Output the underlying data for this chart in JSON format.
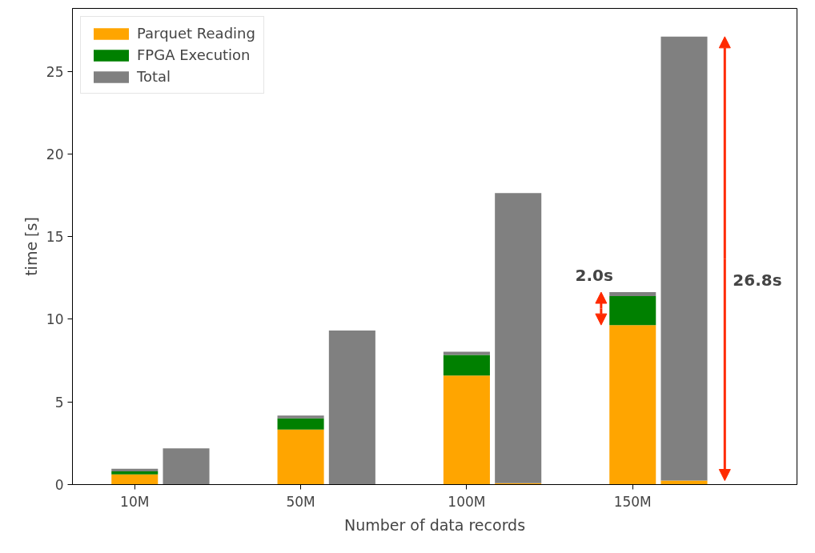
{
  "chart_data": {
    "type": "bar",
    "stacked": true,
    "xlabel": "Number of data records",
    "ylabel": "time [s]",
    "categories": [
      "10M",
      null,
      "50M",
      null,
      "100M",
      null,
      "150M",
      null
    ],
    "series": [
      {
        "name": "Parquet Reading",
        "color": "#ffa500",
        "values": [
          0.62,
          null,
          3.33,
          null,
          6.6,
          0.08,
          9.65,
          0.24
        ]
      },
      {
        "name": "FPGA Execution",
        "color": "#008000",
        "values": [
          0.18,
          null,
          0.67,
          null,
          1.24,
          null,
          1.75,
          null
        ]
      },
      {
        "name": "Total",
        "color": "#808080",
        "values": [
          0.15,
          2.19,
          0.18,
          9.32,
          0.19,
          17.55,
          0.24,
          26.85
        ]
      }
    ],
    "ylim": [
      0,
      28.8
    ],
    "yticks": [
      0,
      5,
      10,
      15,
      20,
      25
    ],
    "annotations": [
      "2.0s",
      "26.8s"
    ],
    "legend": "top left",
    "grid": false
  }
}
